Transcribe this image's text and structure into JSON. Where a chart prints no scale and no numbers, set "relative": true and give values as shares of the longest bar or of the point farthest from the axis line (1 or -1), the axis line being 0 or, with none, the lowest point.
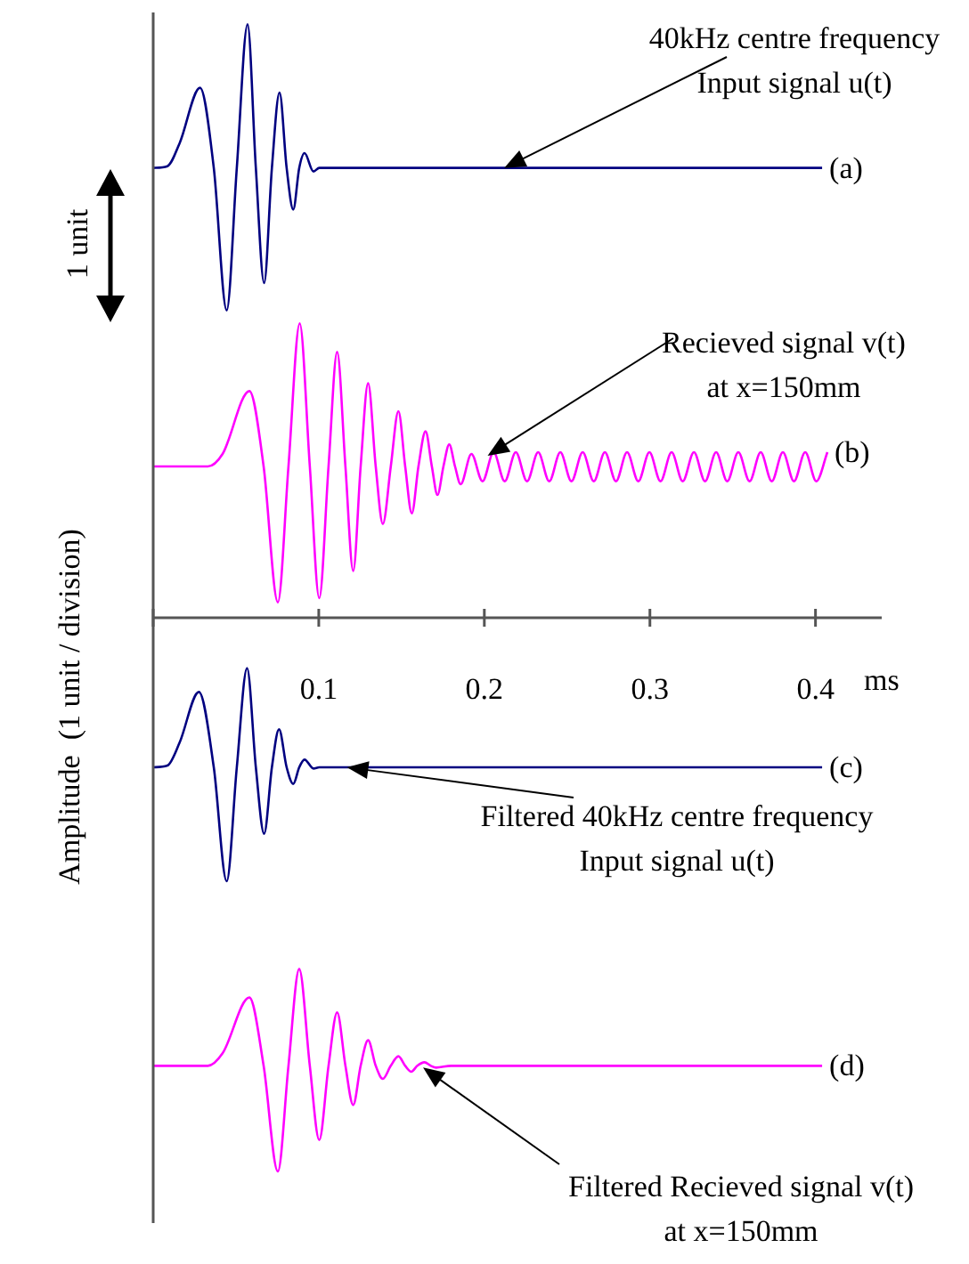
{
  "chart_data": {
    "type": "line",
    "relative": true,
    "ylabel": "Amplitude  (1 unit / division)",
    "xlabel": "ms",
    "xlim": [
      0,
      0.44
    ],
    "xticks": [
      {
        "value": 0,
        "label": null
      },
      0.1,
      0.2,
      0.3,
      0.4
    ],
    "legend": false,
    "line_style": "solid",
    "marker": "none",
    "annotations": [
      "1 unit",
      {
        "text": "40kHz centre frequency\nInput signal u(t)",
        "x": 0.212,
        "y": 0.758
      },
      {
        "text": "Recieved signal v(t)\nat x=150mm",
        "x": 0.202,
        "y": 0.273
      },
      {
        "text": "Filtered 40kHz centre frequency\nInput signal u(t)",
        "x": 0.117,
        "y": -0.252
      },
      {
        "text": "Filtered Recieved signal v(t)\nat x=150mm",
        "x": 0.163,
        "y": -0.758
      }
    ],
    "series": [
      {
        "name": "(a)",
        "color": "#000080",
        "x": [
          0,
          0.0086,
          0.016,
          0.0283,
          0.0366,
          0.0444,
          0.0505,
          0.057,
          0.062,
          0.067,
          0.0717,
          0.0763,
          0.0806,
          0.0846,
          0.0882,
          0.0914,
          0.0968,
          0.1003,
          0.404
        ],
        "values": [
          0.758,
          0.761,
          0.8,
          0.893,
          0.758,
          0.518,
          0.758,
          1,
          0.758,
          0.564,
          0.758,
          0.885,
          0.758,
          0.688,
          0.758,
          0.783,
          0.752,
          0.758,
          0.758
        ]
      },
      {
        "name": "(b)",
        "color": "#ff00ff",
        "x": [
          0,
          0.033,
          0.0419,
          0.0581,
          0.0667,
          0.0753,
          0.0817,
          0.0885,
          0.0946,
          0.1003,
          0.1059,
          0.1111,
          0.1161,
          0.1208,
          0.1253,
          0.1298,
          0.1344,
          0.1387,
          0.1435,
          0.1481,
          0.1522,
          0.1562,
          0.1602,
          0.1645,
          0.1683,
          0.1717,
          0.1753,
          0.1788,
          0.1823,
          0.1857,
          0.1922,
          0.1989,
          0.2056,
          0.2123,
          0.219,
          0.2258,
          0.2325,
          0.2392,
          0.2459,
          0.2526,
          0.2594,
          0.2661,
          0.2728,
          0.2795,
          0.2862,
          0.293,
          0.2997,
          0.3064,
          0.3131,
          0.3198,
          0.3266,
          0.3333,
          0.34,
          0.3467,
          0.3534,
          0.3602,
          0.3669,
          0.3736,
          0.3803,
          0.387,
          0.3938,
          0.4005,
          0.4072
        ],
        "values": [
          0.255,
          0.255,
          0.276,
          0.382,
          0.255,
          0.026,
          0.255,
          0.496,
          0.255,
          0.033,
          0.255,
          0.448,
          0.255,
          0.079,
          0.255,
          0.395,
          0.255,
          0.158,
          0.255,
          0.348,
          0.255,
          0.176,
          0.255,
          0.314,
          0.255,
          0.207,
          0.255,
          0.292,
          0.255,
          0.225,
          0.276,
          0.23,
          0.279,
          0.23,
          0.279,
          0.23,
          0.279,
          0.23,
          0.279,
          0.23,
          0.279,
          0.23,
          0.279,
          0.23,
          0.279,
          0.23,
          0.279,
          0.23,
          0.279,
          0.23,
          0.279,
          0.23,
          0.279,
          0.23,
          0.279,
          0.23,
          0.279,
          0.23,
          0.279,
          0.23,
          0.279,
          0.23,
          0.279
        ]
      },
      {
        "name": "(c)",
        "color": "#000080",
        "x": [
          0,
          0.0086,
          0.016,
          0.0276,
          0.0366,
          0.0444,
          0.0505,
          0.0567,
          0.062,
          0.067,
          0.0717,
          0.076,
          0.0806,
          0.0846,
          0.0882,
          0.0914,
          0.0968,
          0.1003,
          0.404
        ],
        "values": [
          -0.252,
          -0.249,
          -0.21,
          -0.125,
          -0.252,
          -0.444,
          -0.252,
          -0.085,
          -0.252,
          -0.364,
          -0.252,
          -0.188,
          -0.252,
          -0.28,
          -0.252,
          -0.239,
          -0.254,
          -0.252,
          -0.252
        ]
      },
      {
        "name": "(d)",
        "color": "#ff00ff",
        "x": [
          0,
          0.033,
          0.0419,
          0.0581,
          0.0667,
          0.0753,
          0.0817,
          0.0882,
          0.0946,
          0.1003,
          0.1059,
          0.1111,
          0.1161,
          0.1208,
          0.1253,
          0.1298,
          0.1344,
          0.1387,
          0.1435,
          0.1481,
          0.1522,
          0.1559,
          0.1595,
          0.1638,
          0.1677,
          0.1709,
          0.1799,
          0.404
        ],
        "values": [
          -0.755,
          -0.755,
          -0.734,
          -0.64,
          -0.755,
          -0.933,
          -0.755,
          -0.592,
          -0.755,
          -0.88,
          -0.755,
          -0.665,
          -0.755,
          -0.821,
          -0.755,
          -0.712,
          -0.755,
          -0.777,
          -0.755,
          -0.739,
          -0.755,
          -0.765,
          -0.755,
          -0.749,
          -0.755,
          -0.758,
          -0.755,
          -0.755
        ]
      }
    ]
  }
}
